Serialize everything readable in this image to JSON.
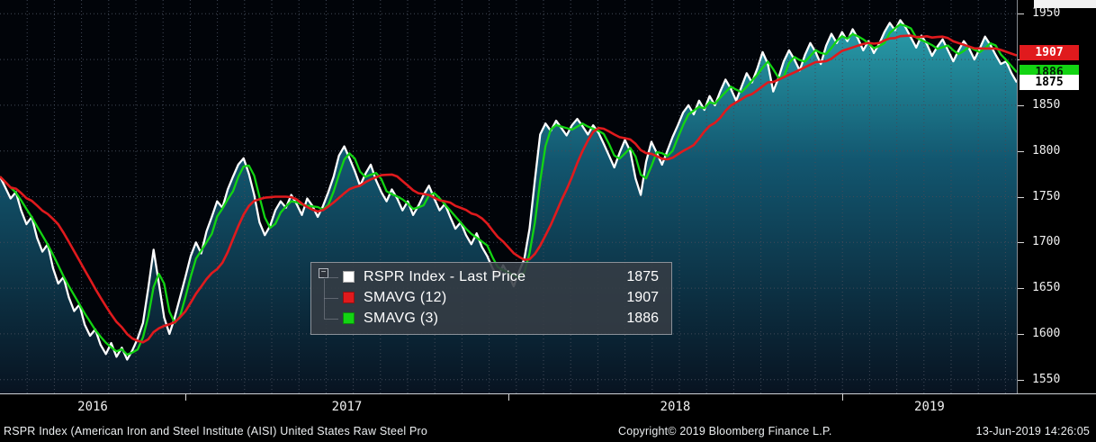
{
  "legend": {
    "rows": [
      {
        "label": "RSPR Index - Last Price",
        "value": "1875",
        "color": "#ffffff"
      },
      {
        "label": "SMAVG (12)",
        "value": "1907",
        "color": "#e01a1d"
      },
      {
        "label": "SMAVG (3)",
        "value": "1886",
        "color": "#13d413"
      }
    ]
  },
  "y_axis_badges": [
    {
      "text": "1907",
      "value": 1907,
      "bg": "#e01a1d",
      "fg": "#ffffff"
    },
    {
      "text": "1886",
      "value": 1886,
      "bg": "#13d413",
      "fg": "#001a06"
    },
    {
      "text": "1875",
      "value": 1875,
      "bg": "#ffffff",
      "fg": "#000000"
    }
  ],
  "bottom_bar": {
    "description": "RSPR Index (American Iron and Steel Institute (AISI) United States Raw Steel Pro",
    "copyright": "Copyright© 2019 Bloomberg Finance L.P.",
    "timestamp": "13-Jun-2019 14:26:05"
  },
  "chart_data": {
    "type": "line",
    "x_axis": {
      "labels": [
        "2016",
        "2017",
        "2018",
        "2019"
      ],
      "year_start_indices": [
        35,
        96,
        159
      ]
    },
    "y_axis": {
      "min": 1535,
      "max": 1965,
      "ticks": [
        1950,
        1900,
        1850,
        1800,
        1750,
        1700,
        1650,
        1600,
        1550
      ]
    },
    "grid": {
      "horizontal": true,
      "vertical": true
    },
    "area_fill": [
      "#2ba7b4",
      "#135a74",
      "#081422"
    ],
    "series": [
      {
        "name": "RSPR Index - Last Price",
        "color": "#ffffff",
        "last_value": 1875,
        "values": [
          1772,
          1760,
          1748,
          1755,
          1735,
          1720,
          1728,
          1705,
          1690,
          1698,
          1672,
          1655,
          1662,
          1640,
          1625,
          1632,
          1610,
          1598,
          1605,
          1588,
          1578,
          1590,
          1575,
          1585,
          1572,
          1582,
          1595,
          1612,
          1650,
          1692,
          1655,
          1618,
          1600,
          1618,
          1640,
          1662,
          1685,
          1700,
          1688,
          1712,
          1728,
          1745,
          1738,
          1758,
          1772,
          1785,
          1792,
          1775,
          1752,
          1722,
          1708,
          1718,
          1735,
          1745,
          1738,
          1752,
          1742,
          1730,
          1748,
          1740,
          1728,
          1740,
          1755,
          1772,
          1795,
          1805,
          1792,
          1778,
          1762,
          1775,
          1785,
          1768,
          1755,
          1745,
          1758,
          1748,
          1735,
          1745,
          1730,
          1740,
          1752,
          1762,
          1748,
          1735,
          1742,
          1728,
          1715,
          1722,
          1708,
          1698,
          1710,
          1695,
          1685,
          1672,
          1662,
          1675,
          1665,
          1652,
          1668,
          1682,
          1715,
          1768,
          1818,
          1830,
          1822,
          1833,
          1825,
          1817,
          1828,
          1835,
          1827,
          1818,
          1828,
          1820,
          1808,
          1795,
          1782,
          1798,
          1812,
          1800,
          1770,
          1752,
          1788,
          1810,
          1798,
          1785,
          1800,
          1815,
          1828,
          1842,
          1850,
          1840,
          1855,
          1845,
          1860,
          1850,
          1865,
          1878,
          1868,
          1855,
          1870,
          1885,
          1875,
          1890,
          1908,
          1895,
          1865,
          1880,
          1898,
          1910,
          1900,
          1888,
          1905,
          1918,
          1908,
          1895,
          1915,
          1928,
          1918,
          1930,
          1920,
          1933,
          1923,
          1910,
          1920,
          1907,
          1917,
          1930,
          1940,
          1932,
          1943,
          1935,
          1924,
          1913,
          1926,
          1917,
          1904,
          1914,
          1922,
          1910,
          1898,
          1910,
          1920,
          1912,
          1900,
          1912,
          1925,
          1916,
          1905,
          1895,
          1898,
          1885,
          1875
        ]
      },
      {
        "name": "SMAVG (12)",
        "color": "#e01a1d",
        "type": "sma",
        "window": 12,
        "last_value": 1907
      },
      {
        "name": "SMAVG (3)",
        "color": "#13d413",
        "type": "sma",
        "window": 3,
        "last_value": 1886
      }
    ]
  }
}
